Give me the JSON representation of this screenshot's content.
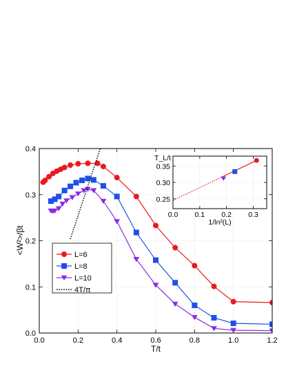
{
  "chart_data": [
    {
      "type": "line",
      "xlabel": "T/t",
      "ylabel": "<W²>/βt",
      "xlim": [
        0.0,
        1.2
      ],
      "ylim": [
        0.0,
        0.4
      ],
      "xticks": [
        "0.0",
        "0.2",
        "0.4",
        "0.6",
        "0.8",
        "1.0",
        "1.2"
      ],
      "yticks": [
        "0.0",
        "0.1",
        "0.2",
        "0.3",
        "0.4"
      ],
      "grid": true,
      "legend_position": "bottom-left",
      "series": [
        {
          "name": "L=6",
          "color": "#e8191f",
          "marker": "circle",
          "x": [
            0.02,
            0.03,
            0.05,
            0.07,
            0.09,
            0.11,
            0.13,
            0.16,
            0.2,
            0.25,
            0.3,
            0.33,
            0.4,
            0.5,
            0.6,
            0.7,
            0.8,
            0.9,
            1.0,
            1.2
          ],
          "y": [
            0.327,
            0.331,
            0.339,
            0.346,
            0.351,
            0.355,
            0.359,
            0.364,
            0.367,
            0.368,
            0.368,
            0.361,
            0.337,
            0.296,
            0.233,
            0.185,
            0.146,
            0.101,
            0.068,
            0.066
          ]
        },
        {
          "name": "L=8",
          "color": "#1f4fe8",
          "marker": "square",
          "x": [
            0.06,
            0.08,
            0.1,
            0.13,
            0.16,
            0.19,
            0.22,
            0.25,
            0.28,
            0.33,
            0.4,
            0.5,
            0.6,
            0.7,
            0.8,
            0.9,
            1.0,
            1.2
          ],
          "y": [
            0.286,
            0.29,
            0.296,
            0.309,
            0.318,
            0.326,
            0.331,
            0.335,
            0.332,
            0.319,
            0.296,
            0.218,
            0.158,
            0.109,
            0.06,
            0.033,
            0.021,
            0.019
          ]
        },
        {
          "name": "L=10",
          "color": "#8a2be2",
          "marker": "triangle-down",
          "x": [
            0.06,
            0.07,
            0.08,
            0.1,
            0.12,
            0.14,
            0.17,
            0.2,
            0.23,
            0.25,
            0.28,
            0.33,
            0.4,
            0.5,
            0.6,
            0.7,
            0.8,
            0.9,
            1.0,
            1.2
          ],
          "y": [
            0.265,
            0.264,
            0.265,
            0.27,
            0.28,
            0.287,
            0.294,
            0.302,
            0.309,
            0.312,
            0.309,
            0.286,
            0.242,
            0.16,
            0.104,
            0.063,
            0.034,
            0.01,
            0.006,
            0.005
          ]
        },
        {
          "name": "4T/π",
          "color": "#000000",
          "marker": "none",
          "style": "dotted",
          "x": [
            0.16,
            0.32
          ],
          "y": [
            0.2037,
            0.4074
          ]
        }
      ]
    },
    {
      "type": "line",
      "xlabel": "1/ln²(L)",
      "ylabel": "T_L/t",
      "xlim": [
        0.0,
        0.35
      ],
      "ylim": [
        0.22,
        0.38
      ],
      "xticks": [
        "0.0",
        "0.1",
        "0.2",
        "0.3"
      ],
      "yticks": [
        "0.25",
        "0.30",
        "0.35"
      ],
      "grid": true,
      "points": [
        {
          "x": 0.1886,
          "y": 0.312,
          "color": "#8a2be2",
          "marker": "triangle-down"
        },
        {
          "x": 0.231,
          "y": 0.333,
          "color": "#1f4fe8",
          "marker": "square"
        },
        {
          "x": 0.3121,
          "y": 0.367,
          "color": "#e8191f",
          "marker": "circle"
        }
      ],
      "fit_line": {
        "x": [
          0.0,
          0.3121
        ],
        "y": [
          0.245,
          0.367
        ],
        "color": "#e8191f",
        "dotted_below_x": 0.1886
      }
    }
  ]
}
